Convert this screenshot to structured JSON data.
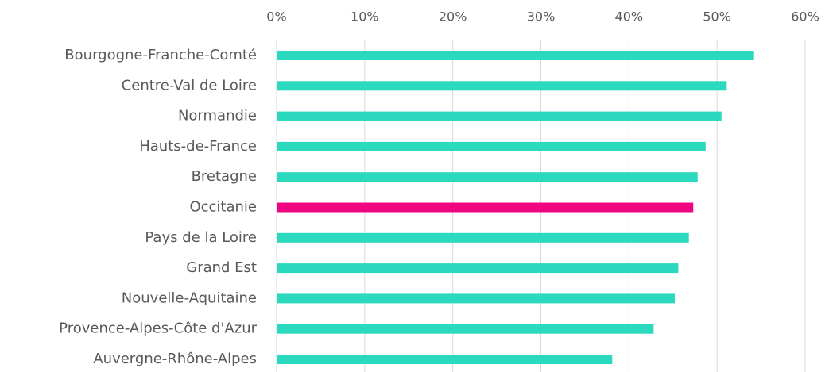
{
  "chart_data": {
    "type": "hbar",
    "categories": [
      "Bourgogne-Franche-Comté",
      "Centre-Val de Loire",
      "Normandie",
      "Hauts-de-France",
      "Bretagne",
      "Occitanie",
      "Pays de la Loire",
      "Grand Est",
      "Nouvelle-Aquitaine",
      "Provence-Alpes-Côte d'Azur",
      "Auvergne-Rhône-Alpes"
    ],
    "values": [
      54.2,
      51.1,
      50.5,
      48.7,
      47.8,
      47.3,
      46.8,
      45.6,
      45.2,
      42.8,
      38.1
    ],
    "colors": [
      "#2ad9be",
      "#2ad9be",
      "#2ad9be",
      "#2ad9be",
      "#2ad9be",
      "#f0047f",
      "#2ad9be",
      "#2ad9be",
      "#2ad9be",
      "#2ad9be",
      "#2ad9be"
    ],
    "xlim": [
      0,
      60
    ],
    "xticks": [
      {
        "value": 0,
        "label": "0%"
      },
      {
        "value": 10,
        "label": "10%"
      },
      {
        "value": 20,
        "label": "20%"
      },
      {
        "value": 30,
        "label": "30%"
      },
      {
        "value": 40,
        "label": "40%"
      },
      {
        "value": 50,
        "label": "50%"
      },
      {
        "value": 60,
        "label": "60%"
      }
    ],
    "grid": true
  }
}
